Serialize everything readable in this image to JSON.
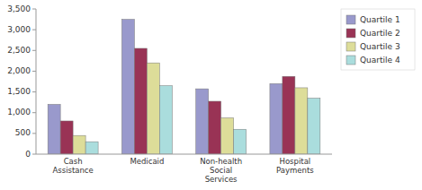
{
  "chart_data": {
    "type": "bar",
    "categories": [
      "Cash\nAssistance",
      "Medicaid",
      "Non-health\nSocial\nServices",
      "Hospital\nPayments"
    ],
    "series": [
      {
        "name": "Quartile 1",
        "color": "#9999CC",
        "values": [
          1200,
          3250,
          1575,
          1700
        ]
      },
      {
        "name": "Quartile 2",
        "color": "#993355",
        "values": [
          800,
          2550,
          1275,
          1875
        ]
      },
      {
        "name": "Quartile 3",
        "color": "#DDDD99",
        "values": [
          450,
          2200,
          875,
          1600
        ]
      },
      {
        "name": "Quartile 4",
        "color": "#AADDDD",
        "values": [
          300,
          1650,
          600,
          1350
        ]
      }
    ],
    "ylim": [
      0,
      3500
    ],
    "yticks": [
      0,
      500,
      {
        "value": 1000,
        "label": "1,000"
      },
      {
        "value": 1500,
        "label": "1,500"
      },
      {
        "value": 2000,
        "label": "2,000"
      },
      {
        "value": 2500,
        "label": "2,500"
      },
      {
        "value": 3000,
        "label": "3,000"
      },
      {
        "value": 3500,
        "label": "3,500"
      }
    ],
    "grid": false,
    "legend": "right"
  }
}
